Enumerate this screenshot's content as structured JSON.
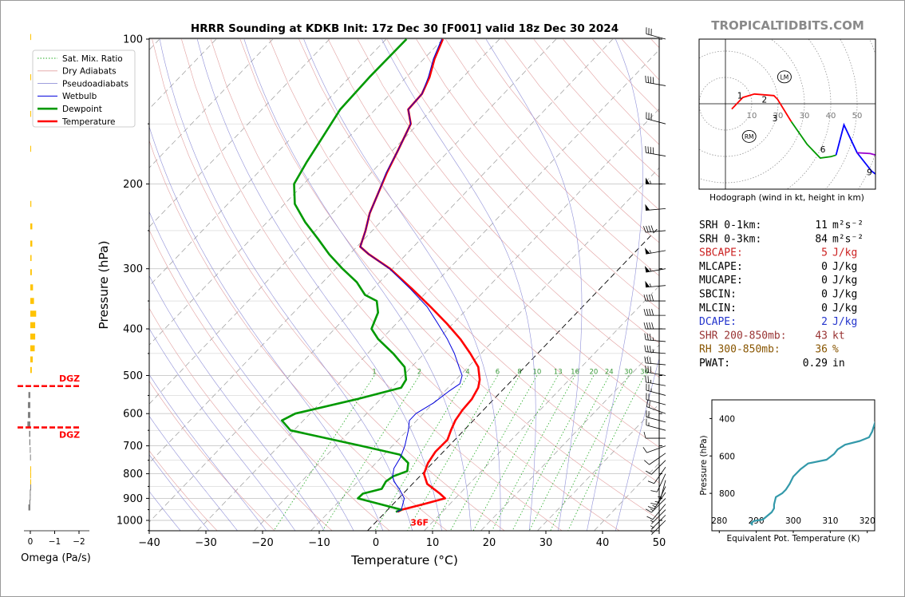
{
  "title": "HRRR Sounding at KDKB Init: 17z Dec 30 [F001] valid 18z Dec 30 2024",
  "brand": "TROPICALTIDBITS.COM",
  "skewt": {
    "xlabel": "Temperature (°C)",
    "ylabel": "Pressure (hPa)",
    "x_ticks": [
      "−40",
      "−30",
      "−20",
      "−10",
      "0",
      "10",
      "20",
      "30",
      "40",
      "50"
    ],
    "y_ticks": [
      "100",
      "200",
      "300",
      "400",
      "500",
      "600",
      "700",
      "800",
      "900",
      "1000"
    ],
    "mixing_ratio_labels": [
      "1",
      "2",
      "4",
      "6",
      "8",
      "10",
      "13",
      "16",
      "20",
      "24",
      "30",
      "36"
    ],
    "surface_temp_label": "36F",
    "legend": [
      "Sat. Mix. Ratio",
      "Dry Adiabats",
      "Pseudoadiabats",
      "Wetbulb",
      "Dewpoint",
      "Temperature"
    ]
  },
  "chart_data": [
    {
      "type": "line",
      "name": "skew-t",
      "x_unit": "°C",
      "y_unit": "hPa",
      "xlim": [
        -40,
        50
      ],
      "ylim": [
        1050,
        100
      ],
      "y_scale": "log",
      "grid": true,
      "legend_position": "top-left",
      "series": [
        {
          "name": "Temperature",
          "color": "#ff0000",
          "points": [
            [
              2.1,
              960
            ],
            [
              2.5,
              950
            ],
            [
              5.4,
              925
            ],
            [
              8.2,
              900
            ],
            [
              6.5,
              880
            ],
            [
              2.6,
              840
            ],
            [
              0.3,
              800
            ],
            [
              -0.8,
              760
            ],
            [
              -1.4,
              720
            ],
            [
              -1.3,
              680
            ],
            [
              -2.3,
              650
            ],
            [
              -3.2,
              620
            ],
            [
              -3.7,
              590
            ],
            [
              -3.9,
              560
            ],
            [
              -4.7,
              530
            ],
            [
              -5.8,
              510
            ],
            [
              -8.2,
              480
            ],
            [
              -11.9,
              450
            ],
            [
              -16.1,
              420
            ],
            [
              -21.1,
              390
            ],
            [
              -26.8,
              360
            ],
            [
              -33.2,
              330
            ],
            [
              -40.4,
              300
            ],
            [
              -46.6,
              280
            ],
            [
              -49.4,
              270
            ],
            [
              -51.2,
              250
            ],
            [
              -53.4,
              230
            ],
            [
              -55.2,
              210
            ],
            [
              -57.2,
              190
            ],
            [
              -59.1,
              170
            ],
            [
              -61.3,
              150
            ],
            [
              -64.2,
              140
            ],
            [
              -64.4,
              130
            ],
            [
              -65.9,
              120
            ],
            [
              -68.1,
              110
            ],
            [
              -70.0,
              100
            ]
          ]
        },
        {
          "name": "Dewpoint",
          "color": "#009900",
          "points": [
            [
              1.8,
              960
            ],
            [
              2.4,
              950
            ],
            [
              -7.2,
              900
            ],
            [
              -7.1,
              880
            ],
            [
              -4.6,
              860
            ],
            [
              -5.1,
              830
            ],
            [
              -4.7,
              810
            ],
            [
              -3.1,
              790
            ],
            [
              -4.3,
              760
            ],
            [
              -7.2,
              730
            ],
            [
              -15.5,
              700
            ],
            [
              -30.6,
              650
            ],
            [
              -33.8,
              620
            ],
            [
              -32.6,
              600
            ],
            [
              -24.2,
              560
            ],
            [
              -18.3,
              530
            ],
            [
              -18.8,
              510
            ],
            [
              -21.2,
              480
            ],
            [
              -25.5,
              450
            ],
            [
              -30.6,
              420
            ],
            [
              -33.5,
              400
            ],
            [
              -35.1,
              370
            ],
            [
              -37.3,
              350
            ],
            [
              -40.4,
              340
            ],
            [
              -44.0,
              320
            ],
            [
              -48.8,
              300
            ],
            [
              -53.6,
              280
            ],
            [
              -58.2,
              260
            ],
            [
              -63.3,
              240
            ],
            [
              -68.2,
              220
            ],
            [
              -71.7,
              200
            ],
            [
              -73.2,
              180
            ],
            [
              -74.6,
              160
            ],
            [
              -76.2,
              140
            ],
            [
              -76.5,
              120
            ],
            [
              -76.4,
              100
            ]
          ]
        },
        {
          "name": "Wetbulb",
          "color": "#0000dd",
          "points": [
            [
              2.0,
              960
            ],
            [
              2.4,
              950
            ],
            [
              1.0,
              900
            ],
            [
              -1.5,
              860
            ],
            [
              -3.7,
              830
            ],
            [
              -4.8,
              810
            ],
            [
              -5.9,
              780
            ],
            [
              -6.6,
              740
            ],
            [
              -7.8,
              700
            ],
            [
              -9.8,
              650
            ],
            [
              -11.3,
              620
            ],
            [
              -11.3,
              600
            ],
            [
              -10.0,
              570
            ],
            [
              -9.3,
              540
            ],
            [
              -8.6,
              520
            ],
            [
              -9.6,
              500
            ],
            [
              -11.6,
              480
            ],
            [
              -14.7,
              450
            ],
            [
              -18.4,
              420
            ],
            [
              -22.7,
              390
            ],
            [
              -27.4,
              360
            ],
            [
              -33.5,
              330
            ],
            [
              -40.5,
              300
            ],
            [
              -46.6,
              280
            ],
            [
              -49.4,
              270
            ],
            [
              -51.2,
              250
            ],
            [
              -53.4,
              230
            ],
            [
              -55.2,
              210
            ],
            [
              -57.3,
              190
            ],
            [
              -59.1,
              170
            ],
            [
              -61.3,
              150
            ],
            [
              -64.2,
              140
            ],
            [
              -64.4,
              130
            ],
            [
              -66.1,
              120
            ],
            [
              -68.3,
              110
            ],
            [
              -70.2,
              100
            ]
          ]
        }
      ]
    },
    {
      "type": "bar",
      "name": "omega",
      "xlabel": "Omega (Pa/s)",
      "x_ticks": [
        "0",
        "−1",
        "−2"
      ],
      "xlim": [
        0.2,
        -2.0
      ],
      "dgz_label": "DGZ",
      "dgz_levels": [
        526,
        641
      ],
      "values": [
        [
          99,
          -0.02
        ],
        [
          120,
          -0.02
        ],
        [
          143,
          -0.02
        ],
        [
          169,
          -0.02
        ],
        [
          220,
          -0.04
        ],
        [
          245,
          -0.08
        ],
        [
          266,
          -0.08
        ],
        [
          285,
          -0.05
        ],
        [
          305,
          -0.06
        ],
        [
          328,
          -0.11
        ],
        [
          350,
          -0.15
        ],
        [
          372,
          -0.24
        ],
        [
          393,
          -0.2
        ],
        [
          415,
          -0.2
        ],
        [
          439,
          -0.18
        ],
        [
          463,
          -0.1
        ],
        [
          487,
          -0.06
        ],
        [
          549,
          0.08
        ],
        [
          576,
          0.1
        ],
        [
          604,
          0.1
        ],
        [
          632,
          0.12
        ],
        [
          661,
          0.05
        ],
        [
          688,
          0.04
        ],
        [
          714,
          0.02
        ],
        [
          740,
          0.01
        ],
        [
          783,
          -0.02
        ],
        [
          806,
          -0.02
        ],
        [
          833,
          -0.01
        ],
        [
          854,
          0.0
        ],
        [
          875,
          0.02
        ],
        [
          896,
          0.02
        ],
        [
          919,
          0.04
        ],
        [
          940,
          0.08
        ]
      ]
    },
    {
      "type": "line",
      "name": "hodograph",
      "xlabel": "Hodograph (wind in kt, height in km)",
      "ring_labels": [
        "10",
        "20",
        "30",
        "40",
        "50"
      ],
      "height_labels": [
        "1",
        "2",
        "3",
        "6",
        "9"
      ],
      "markers": [
        "LM",
        "RM"
      ],
      "series": [
        {
          "name": "0-3 km",
          "color": "#ff0000",
          "points": [
            [
              2.4,
              -2.0
            ],
            [
              6.6,
              2.4
            ],
            [
              11.0,
              3.7
            ],
            [
              18.4,
              3.1
            ],
            [
              19.8,
              1.7
            ],
            [
              25.0,
              -6.8
            ]
          ]
        },
        {
          "name": "3-6 km",
          "color": "#009900",
          "points": [
            [
              25.0,
              -6.8
            ],
            [
              31.0,
              -15.4
            ],
            [
              36.0,
              -20.6
            ],
            [
              40.0,
              -20.1
            ],
            [
              42.0,
              -19.5
            ]
          ]
        },
        {
          "name": "6-9 km",
          "color": "#0000ff",
          "points": [
            [
              42.0,
              -19.5
            ],
            [
              45.0,
              -8.0
            ],
            [
              50.0,
              -18.6
            ],
            [
              55.5,
              -25.6
            ],
            [
              63.0,
              -31.0
            ],
            [
              69.0,
              -35.0
            ]
          ]
        },
        {
          "name": "9+ km",
          "color": "#9900cc",
          "points": [
            [
              50.0,
              -18.6
            ],
            [
              55.0,
              -18.9
            ],
            [
              61.0,
              -20.6
            ],
            [
              66.0,
              -22.6
            ]
          ]
        }
      ]
    },
    {
      "type": "line",
      "name": "equivalent-potential-temperature",
      "xlabel": "Equivalent Pot. Temperature (K)",
      "ylabel": "Pressure (hPa)",
      "x_ticks": [
        "280",
        "290",
        "300",
        "310",
        "320"
      ],
      "y_ticks": [
        "400",
        "600",
        "800"
      ],
      "xlim": [
        278,
        322
      ],
      "ylim": [
        1000,
        300
      ],
      "series": [
        {
          "name": "Theta-E",
          "color": "#3399aa",
          "points": [
            [
              289.0,
              970
            ],
            [
              288.6,
              960
            ],
            [
              289.3,
              948
            ],
            [
              291.8,
              940
            ],
            [
              294.2,
              900
            ],
            [
              294.8,
              880
            ],
            [
              294.8,
              860
            ],
            [
              295.3,
              820
            ],
            [
              297.0,
              800
            ],
            [
              298.0,
              780
            ],
            [
              299.0,
              750
            ],
            [
              300.0,
              710
            ],
            [
              302.0,
              670
            ],
            [
              304.0,
              640
            ],
            [
              309.0,
              620
            ],
            [
              311.0,
              590
            ],
            [
              312.0,
              565
            ],
            [
              314.0,
              540
            ],
            [
              318.0,
              520
            ],
            [
              320.5,
              500
            ],
            [
              321.3,
              470
            ],
            [
              322.1,
              420
            ],
            [
              322.8,
              400
            ],
            [
              324.0,
              350
            ],
            [
              325.0,
              320
            ]
          ]
        }
      ]
    }
  ],
  "indices": [
    {
      "label": "SRH 0-1km:",
      "value": "11",
      "unit": "m²s⁻²",
      "color": "#000000"
    },
    {
      "label": "SRH 0-3km:",
      "value": "84",
      "unit": "m²s⁻²",
      "color": "#000000"
    },
    {
      "label": "SBCAPE:",
      "value": "5",
      "unit": "J/kg",
      "color": "#cc2222"
    },
    {
      "label": "MLCAPE:",
      "value": "0",
      "unit": "J/kg",
      "color": "#000000"
    },
    {
      "label": "MUCAPE:",
      "value": "0",
      "unit": "J/kg",
      "color": "#000000"
    },
    {
      "label": "SBCIN:",
      "value": "0",
      "unit": "J/kg",
      "color": "#000000"
    },
    {
      "label": "MLCIN:",
      "value": "0",
      "unit": "J/kg",
      "color": "#000000"
    },
    {
      "label": "DCAPE:",
      "value": "2",
      "unit": "J/kg",
      "color": "#2233cc"
    },
    {
      "label": "SHR 200-850mb:",
      "value": "43",
      "unit": "kt",
      "color": "#993333"
    },
    {
      "label": "RH 300-850mb:",
      "value": "36",
      "unit": "%",
      "color": "#885500"
    },
    {
      "label": "PWAT:",
      "value": "0.29",
      "unit": "in",
      "color": "#000000"
    }
  ],
  "wind_barbs": [
    {
      "p": 100,
      "speed": 30,
      "dir": 285
    },
    {
      "p": 125,
      "speed": 40,
      "dir": 280
    },
    {
      "p": 150,
      "speed": 30,
      "dir": 285
    },
    {
      "p": 175,
      "speed": 40,
      "dir": 280
    },
    {
      "p": 200,
      "speed": 55,
      "dir": 270
    },
    {
      "p": 225,
      "speed": 50,
      "dir": 265
    },
    {
      "p": 250,
      "speed": 40,
      "dir": 265
    },
    {
      "p": 275,
      "speed": 55,
      "dir": 260
    },
    {
      "p": 300,
      "speed": 55,
      "dir": 260
    },
    {
      "p": 325,
      "speed": 55,
      "dir": 265
    },
    {
      "p": 350,
      "speed": 40,
      "dir": 270
    },
    {
      "p": 375,
      "speed": 40,
      "dir": 270
    },
    {
      "p": 400,
      "speed": 40,
      "dir": 270
    },
    {
      "p": 425,
      "speed": 35,
      "dir": 275
    },
    {
      "p": 450,
      "speed": 35,
      "dir": 275
    },
    {
      "p": 475,
      "speed": 30,
      "dir": 275
    },
    {
      "p": 500,
      "speed": 30,
      "dir": 280
    },
    {
      "p": 525,
      "speed": 25,
      "dir": 280
    },
    {
      "p": 550,
      "speed": 25,
      "dir": 285
    },
    {
      "p": 575,
      "speed": 20,
      "dir": 285
    },
    {
      "p": 600,
      "speed": 20,
      "dir": 290
    },
    {
      "p": 625,
      "speed": 20,
      "dir": 285
    },
    {
      "p": 650,
      "speed": 15,
      "dir": 285
    },
    {
      "p": 675,
      "speed": 10,
      "dir": 270
    },
    {
      "p": 700,
      "speed": 10,
      "dir": 250
    },
    {
      "p": 725,
      "speed": 10,
      "dir": 235
    },
    {
      "p": 750,
      "speed": 10,
      "dir": 225
    },
    {
      "p": 775,
      "speed": 10,
      "dir": 215
    },
    {
      "p": 800,
      "speed": 10,
      "dir": 205
    },
    {
      "p": 825,
      "speed": 5,
      "dir": 195
    },
    {
      "p": 850,
      "speed": 15,
      "dir": 205
    },
    {
      "p": 875,
      "speed": 15,
      "dir": 215
    },
    {
      "p": 900,
      "speed": 15,
      "dir": 225
    },
    {
      "p": 925,
      "speed": 10,
      "dir": 220
    },
    {
      "p": 950,
      "speed": 5,
      "dir": 225
    },
    {
      "p": 975,
      "speed": 5,
      "dir": 225
    },
    {
      "p": 1000,
      "speed": 5,
      "dir": 225
    }
  ]
}
